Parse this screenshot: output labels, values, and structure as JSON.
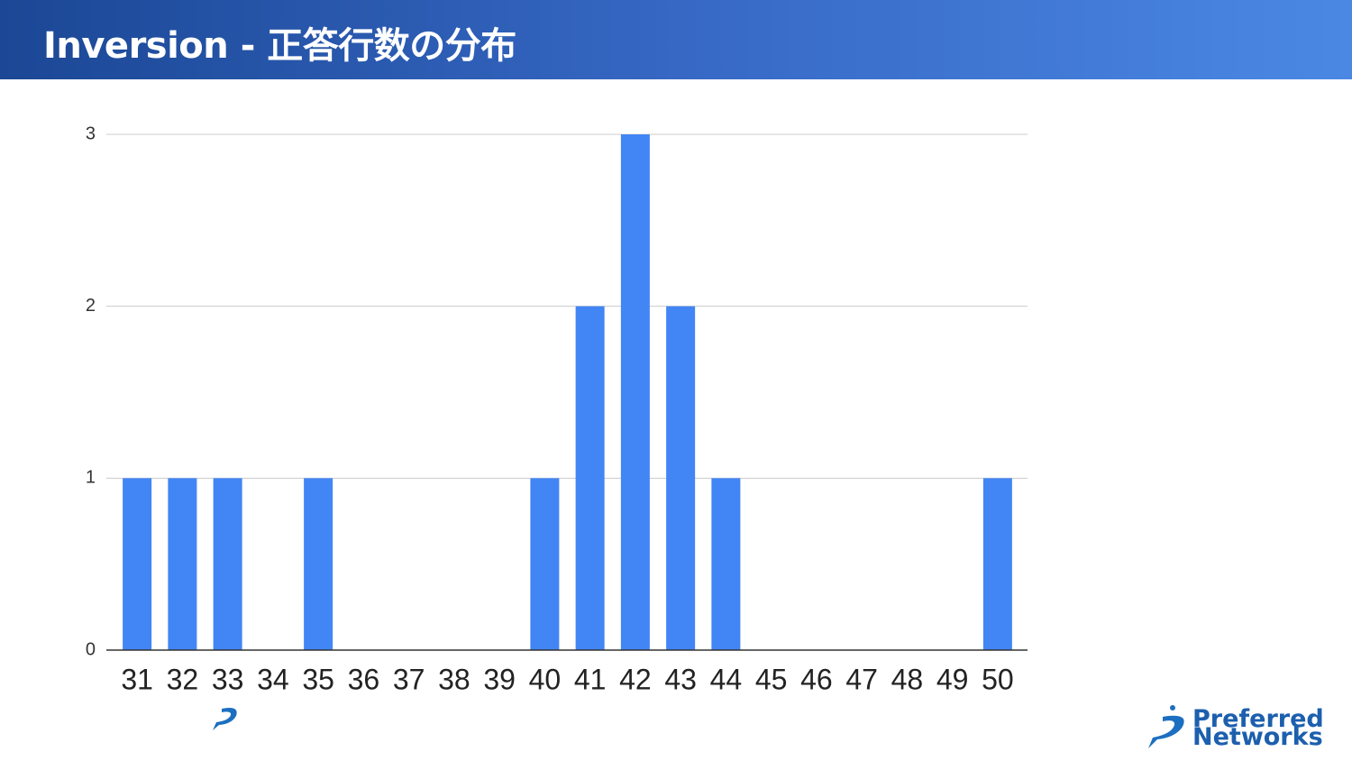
{
  "title": "Inversion - 正答行数の分布",
  "chart_data": {
    "type": "bar",
    "categories": [
      "31",
      "32",
      "33",
      "34",
      "35",
      "36",
      "37",
      "38",
      "39",
      "40",
      "41",
      "42",
      "43",
      "44",
      "45",
      "46",
      "47",
      "48",
      "49",
      "50"
    ],
    "values": [
      1,
      1,
      1,
      0,
      1,
      0,
      0,
      0,
      0,
      1,
      2,
      3,
      2,
      1,
      0,
      0,
      0,
      0,
      0,
      1
    ],
    "color": "#4285f4",
    "ylim": [
      0,
      3
    ],
    "yticks": [
      0,
      1,
      2,
      3
    ],
    "grid": true
  },
  "logo": {
    "line1": "Preferred",
    "line2": "Networks"
  }
}
